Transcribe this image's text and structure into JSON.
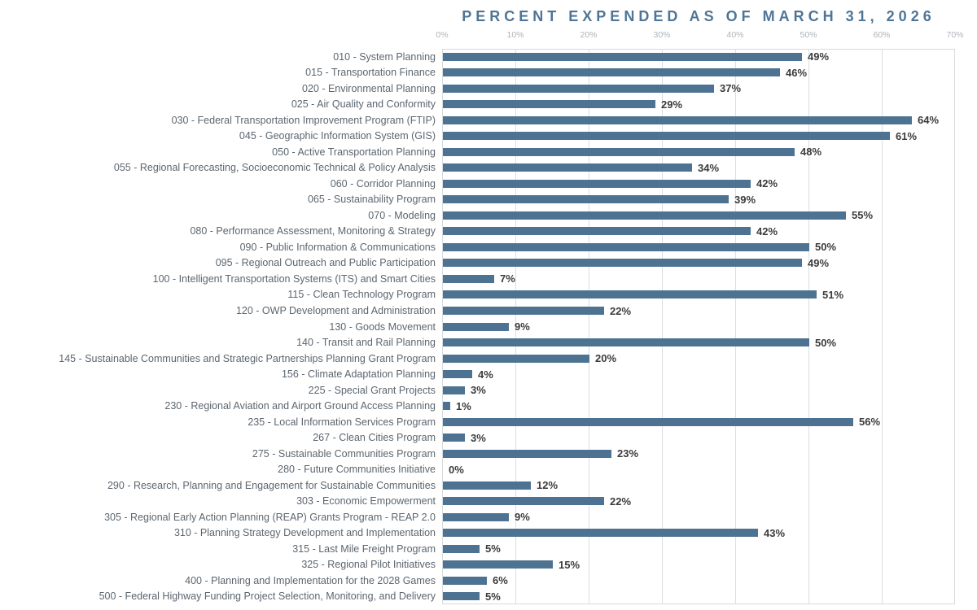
{
  "chart_data": {
    "type": "bar",
    "orientation": "horizontal",
    "title": "PERCENT EXPENDED AS OF MARCH 31, 2026",
    "categories": [
      "010 - System Planning",
      "015 - Transportation Finance",
      "020 - Environmental Planning",
      "025 - Air Quality and Conformity",
      "030 - Federal Transportation Improvement Program (FTIP)",
      "045 - Geographic Information System (GIS)",
      "050 - Active Transportation Planning",
      "055 - Regional Forecasting, Socioeconomic Technical & Policy Analysis",
      "060 - Corridor Planning",
      "065 - Sustainability Program",
      "070 - Modeling",
      "080 - Performance Assessment, Monitoring & Strategy",
      "090 - Public Information & Communications",
      "095 - Regional Outreach and Public Participation",
      "100 - Intelligent Transportation Systems (ITS) and Smart Cities",
      "115 - Clean Technology Program",
      "120 - OWP Development and Administration",
      "130 - Goods Movement",
      "140 - Transit and Rail Planning",
      "145 - Sustainable Communities and Strategic Partnerships Planning Grant Program",
      "156 - Climate Adaptation Planning",
      "225 - Special Grant Projects",
      "230 - Regional Aviation and Airport Ground Access Planning",
      "235 - Local Information Services Program",
      "267 - Clean Cities Program",
      "275 - Sustainable Communities Program",
      "280 - Future Communities Initiative",
      "290 - Research, Planning and Engagement for Sustainable Communities",
      "303 - Economic Empowerment",
      "305 - Regional Early Action Planning (REAP) Grants Program - REAP 2.0",
      "310 - Planning Strategy Development and Implementation",
      "315 - Last Mile Freight Program",
      "325 - Regional Pilot Initiatives",
      "400 - Planning and Implementation for the 2028 Games",
      "500 - Federal Highway Funding Project Selection, Monitoring, and Delivery"
    ],
    "values": [
      49,
      46,
      37,
      29,
      64,
      61,
      48,
      34,
      42,
      39,
      55,
      42,
      50,
      49,
      7,
      51,
      22,
      9,
      50,
      20,
      4,
      3,
      1,
      56,
      3,
      23,
      0,
      12,
      22,
      9,
      43,
      5,
      15,
      6,
      5
    ],
    "value_suffix": "%",
    "x_ticks": [
      "0%",
      "10%",
      "20%",
      "30%",
      "40%",
      "50%",
      "60%",
      "70%"
    ],
    "xlim": [
      0,
      70
    ],
    "grid": "vertical",
    "legend": "none",
    "colors": {
      "bar": "#4e7392",
      "title": "#4f7596",
      "category_label": "#5c6670",
      "value_label": "#3b3b3b",
      "tick_label": "#aeb3b9",
      "gridline": "#dcdee0",
      "plot_border": "#d8dadc",
      "background": "#ffffff"
    }
  }
}
